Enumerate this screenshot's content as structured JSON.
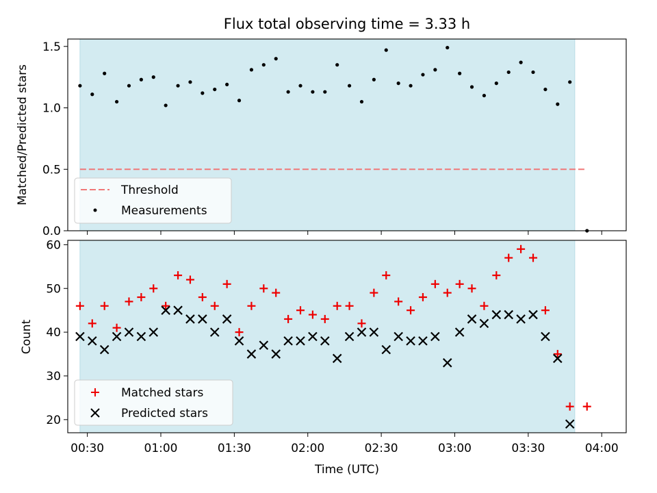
{
  "chart_data": [
    {
      "type": "scatter",
      "title": "Flux total observing time = 3.33 h",
      "xlabel": "",
      "ylabel": "Matched/Predicted stars",
      "ylim": [
        0,
        1.56
      ],
      "yticks": [
        0.0,
        0.5,
        1.0,
        1.5
      ],
      "ytick_labels": [
        "0.0",
        "0.5",
        "1.0",
        "1.5"
      ],
      "x_unit": "minutes after 00:00 UTC",
      "xlim": [
        22,
        250
      ],
      "shaded_range": [
        27,
        229
      ],
      "shade_color": "#d3ebf1",
      "legend_position": "lower-left",
      "threshold": {
        "name": "Threshold",
        "value": 0.5,
        "x_range": [
          27,
          234
        ],
        "color": "#f07878"
      },
      "series": [
        {
          "name": "Measurements",
          "color": "#000000",
          "x": [
            27,
            32,
            37,
            42,
            47,
            52,
            57,
            62,
            67,
            72,
            77,
            82,
            87,
            92,
            97,
            102,
            107,
            112,
            117,
            122,
            127,
            132,
            137,
            142,
            147,
            152,
            157,
            162,
            167,
            172,
            177,
            182,
            187,
            192,
            197,
            202,
            207,
            212,
            217,
            222,
            227,
            234
          ],
          "y": [
            1.18,
            1.11,
            1.28,
            1.05,
            1.18,
            1.23,
            1.25,
            1.02,
            1.18,
            1.21,
            1.12,
            1.15,
            1.19,
            1.06,
            1.31,
            1.35,
            1.4,
            1.13,
            1.18,
            1.13,
            1.13,
            1.35,
            1.18,
            1.05,
            1.23,
            1.47,
            1.2,
            1.18,
            1.27,
            1.31,
            1.49,
            1.28,
            1.17,
            1.1,
            1.2,
            1.29,
            1.37,
            1.29,
            1.15,
            1.03,
            1.21,
            0.0
          ]
        }
      ]
    },
    {
      "type": "scatter",
      "title": "",
      "xlabel": "Time (UTC)",
      "ylabel": "Count",
      "ylim": [
        17,
        61
      ],
      "yticks": [
        20,
        30,
        40,
        50,
        60
      ],
      "ytick_labels": [
        "20",
        "30",
        "40",
        "50",
        "60"
      ],
      "x_unit": "minutes after 00:00 UTC",
      "xlim": [
        22,
        250
      ],
      "xticks": [
        30,
        60,
        90,
        120,
        150,
        180,
        210,
        240
      ],
      "xtick_labels": [
        "00:30",
        "01:00",
        "01:30",
        "02:00",
        "02:30",
        "03:00",
        "03:30",
        "04:00"
      ],
      "shaded_range": [
        27,
        229
      ],
      "shade_color": "#d3ebf1",
      "legend_position": "lower-left",
      "series": [
        {
          "name": "Matched stars",
          "marker": "plus",
          "color": "#ee0000",
          "x": [
            27,
            32,
            37,
            42,
            47,
            52,
            57,
            62,
            67,
            72,
            77,
            82,
            87,
            92,
            97,
            102,
            107,
            112,
            117,
            122,
            127,
            132,
            137,
            142,
            147,
            152,
            157,
            162,
            167,
            172,
            177,
            182,
            187,
            192,
            197,
            202,
            207,
            212,
            217,
            222,
            227,
            234
          ],
          "y": [
            46,
            42,
            46,
            41,
            47,
            48,
            50,
            46,
            53,
            52,
            48,
            46,
            51,
            40,
            46,
            50,
            49,
            43,
            45,
            44,
            43,
            46,
            46,
            42,
            49,
            53,
            47,
            45,
            48,
            51,
            49,
            51,
            50,
            46,
            53,
            57,
            59,
            57,
            45,
            35,
            23,
            23
          ]
        },
        {
          "name": "Predicted stars",
          "marker": "x",
          "color": "#000000",
          "x": [
            27,
            32,
            37,
            42,
            47,
            52,
            57,
            62,
            67,
            72,
            77,
            82,
            87,
            92,
            97,
            102,
            107,
            112,
            117,
            122,
            127,
            132,
            137,
            142,
            147,
            152,
            157,
            162,
            167,
            172,
            177,
            182,
            187,
            192,
            197,
            202,
            207,
            212,
            217,
            222,
            227
          ],
          "y": [
            39,
            38,
            36,
            39,
            40,
            39,
            40,
            45,
            45,
            43,
            43,
            40,
            43,
            38,
            35,
            37,
            35,
            38,
            38,
            39,
            38,
            34,
            39,
            40,
            40,
            36,
            39,
            38,
            38,
            39,
            33,
            40,
            43,
            42,
            44,
            44,
            43,
            44,
            39,
            34,
            19
          ]
        }
      ]
    }
  ]
}
